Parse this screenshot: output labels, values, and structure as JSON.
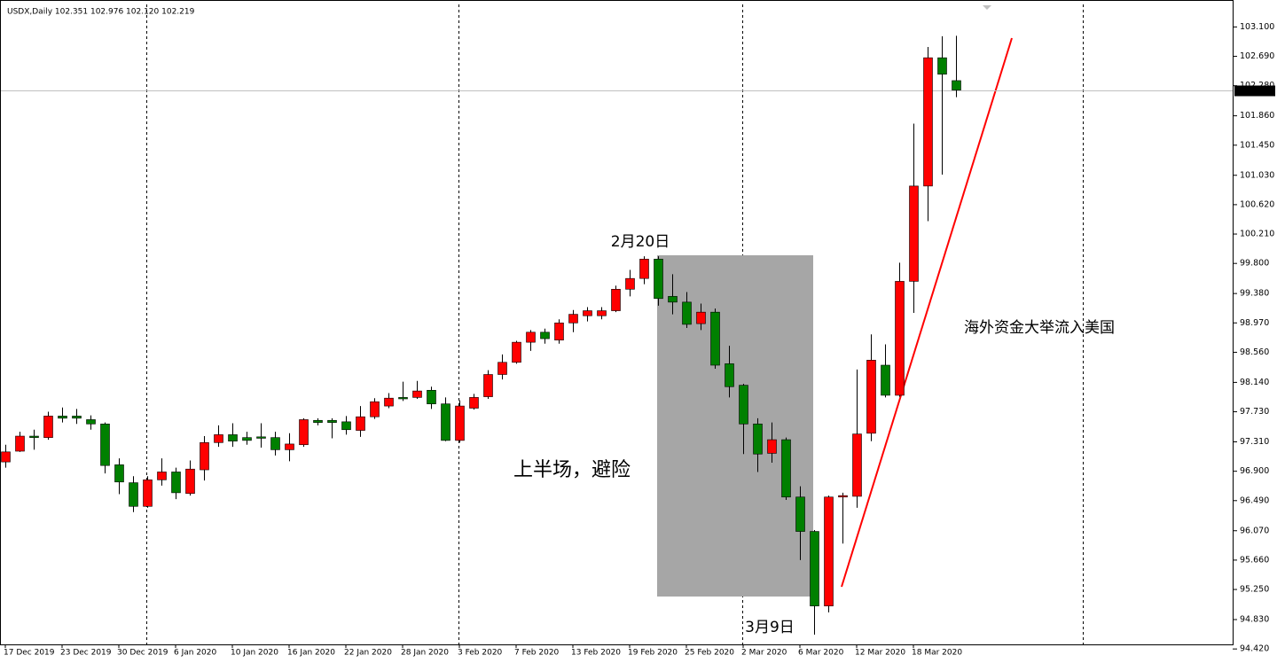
{
  "chart_data": {
    "type": "candlestick",
    "title": "USDX,Daily  102.351 102.976 102.120 102.219",
    "categories": [
      "17 Dec 2019",
      null,
      null,
      null,
      "23 Dec 2019",
      null,
      null,
      null,
      "30 Dec 2019",
      null,
      null,
      null,
      "6 Jan 2020",
      null,
      null,
      null,
      "10 Jan 2020",
      null,
      null,
      null,
      "16 Jan 2020",
      null,
      null,
      null,
      "22 Jan 2020",
      null,
      null,
      null,
      "28 Jan 2020",
      null,
      null,
      null,
      "3 Feb 2020",
      null,
      null,
      null,
      "7 Feb 2020",
      null,
      null,
      null,
      "13 Feb 2020",
      null,
      null,
      null,
      "19 Feb 2020",
      null,
      null,
      null,
      "25 Feb 2020",
      null,
      null,
      null,
      "2 Mar 2020",
      null,
      null,
      null,
      "6 Mar 2020",
      null,
      null,
      null,
      "12 Mar 2020",
      null,
      null,
      null,
      "18 Mar 2020",
      null,
      null,
      null
    ],
    "open": [
      97.03,
      97.18,
      97.39,
      97.37,
      97.67,
      97.67,
      97.62,
      97.56,
      96.99,
      96.74,
      96.41,
      96.78,
      96.89,
      96.59,
      96.92,
      97.3,
      97.41,
      97.37,
      97.38,
      97.37,
      97.2,
      97.27,
      97.61,
      97.61,
      97.59,
      97.47,
      97.66,
      97.81,
      97.93,
      97.93,
      98.03,
      97.84,
      97.33,
      97.78,
      97.94,
      98.25,
      98.42,
      98.7,
      98.84,
      98.73,
      98.97,
      99.07,
      99.07,
      99.14,
      99.44,
      99.59,
      99.86,
      99.34,
      99.26,
      98.96,
      99.12,
      98.4,
      98.1,
      97.56,
      97.15,
      97.34,
      96.54,
      96.06,
      95.02,
      96.54,
      96.55,
      97.43,
      98.38,
      97.96,
      99.55,
      100.88,
      102.67,
      102.351
    ],
    "high": [
      97.27,
      97.45,
      97.48,
      97.73,
      97.79,
      97.77,
      97.68,
      97.58,
      97.08,
      96.83,
      96.83,
      97.08,
      96.95,
      97.05,
      97.39,
      97.54,
      97.57,
      97.45,
      97.57,
      97.45,
      97.43,
      97.64,
      97.64,
      97.64,
      97.67,
      97.81,
      97.92,
      97.99,
      98.15,
      98.16,
      98.08,
      97.93,
      97.89,
      97.98,
      98.31,
      98.53,
      98.72,
      98.87,
      98.89,
      99.02,
      99.15,
      99.19,
      99.19,
      99.49,
      99.71,
      99.9,
      99.9,
      99.65,
      99.4,
      99.24,
      99.17,
      98.65,
      98.12,
      97.64,
      97.58,
      97.37,
      96.69,
      96.08,
      96.56,
      96.6,
      98.32,
      98.81,
      98.67,
      99.81,
      101.75,
      102.82,
      102.97,
      102.976
    ],
    "low": [
      96.95,
      97.17,
      97.2,
      97.34,
      97.58,
      97.56,
      97.48,
      96.87,
      96.58,
      96.33,
      96.39,
      96.7,
      96.51,
      96.56,
      96.77,
      97.24,
      97.24,
      97.27,
      97.23,
      97.12,
      97.04,
      97.24,
      97.54,
      97.36,
      97.41,
      97.38,
      97.63,
      97.78,
      97.88,
      97.91,
      97.77,
      97.32,
      97.3,
      97.76,
      97.91,
      98.18,
      98.4,
      98.58,
      98.68,
      98.68,
      98.84,
      98.99,
      99.02,
      99.12,
      99.34,
      99.51,
      99.21,
      99.09,
      98.9,
      98.87,
      98.33,
      97.93,
      97.14,
      96.89,
      97.02,
      96.5,
      95.66,
      94.62,
      94.93,
      95.89,
      96.39,
      97.32,
      97.93,
      97.94,
      99.11,
      100.39,
      101.04,
      102.12
    ],
    "close": [
      97.17,
      97.39,
      97.37,
      97.67,
      97.64,
      97.64,
      97.56,
      96.98,
      96.75,
      96.41,
      96.78,
      96.89,
      96.6,
      96.93,
      97.3,
      97.41,
      97.32,
      97.33,
      97.36,
      97.2,
      97.28,
      97.62,
      97.58,
      97.58,
      97.48,
      97.66,
      97.87,
      97.92,
      97.91,
      98.02,
      97.84,
      97.33,
      97.81,
      97.93,
      98.25,
      98.42,
      98.7,
      98.84,
      98.75,
      98.97,
      99.09,
      99.14,
      99.14,
      99.44,
      99.59,
      99.86,
      99.31,
      99.26,
      98.95,
      99.12,
      98.38,
      98.08,
      97.56,
      97.14,
      97.34,
      96.54,
      96.06,
      95.02,
      96.54,
      96.56,
      97.42,
      98.45,
      97.96,
      99.55,
      100.88,
      102.67,
      102.44,
      102.219
    ],
    "up_color": "#ff0000",
    "down_color": "#008000",
    "ylim": [
      94.224,
      103.476
    ],
    "yticks": [
      {
        "value": 103.1,
        "label": "103.100"
      },
      {
        "value": 102.69,
        "label": "102.690"
      },
      {
        "value": 102.28,
        "label": "102.280"
      },
      {
        "value": 101.86,
        "label": "101.860"
      },
      {
        "value": 101.45,
        "label": "101.450"
      },
      {
        "value": 101.03,
        "label": "101.030"
      },
      {
        "value": 100.62,
        "label": "100.620"
      },
      {
        "value": 100.21,
        "label": "100.210"
      },
      {
        "value": 99.8,
        "label": "99.800"
      },
      {
        "value": 99.38,
        "label": "99.380"
      },
      {
        "value": 98.97,
        "label": "98.970"
      },
      {
        "value": 98.56,
        "label": "98.560"
      },
      {
        "value": 98.14,
        "label": "98.140"
      },
      {
        "value": 97.73,
        "label": "97.730"
      },
      {
        "value": 97.31,
        "label": "97.310"
      },
      {
        "value": 96.9,
        "label": "96.900"
      },
      {
        "value": 96.49,
        "label": "96.490"
      },
      {
        "value": 96.07,
        "label": "96.070"
      },
      {
        "value": 95.66,
        "label": "95.660"
      },
      {
        "value": 95.25,
        "label": "95.250"
      },
      {
        "value": 94.83,
        "label": "94.830"
      },
      {
        "value": 94.42,
        "label": "94.420"
      }
    ],
    "price_line": {
      "value": 102.219,
      "label": "102.219"
    },
    "annotations": [
      {
        "text": "2月20日",
        "color": "#000000"
      },
      {
        "text": "上半场，避险",
        "color": "#ff0000"
      },
      {
        "text": "3月9日",
        "color": "#ff0000"
      },
      {
        "text": "海外资金大举流入美国",
        "color": "#000000"
      }
    ]
  }
}
